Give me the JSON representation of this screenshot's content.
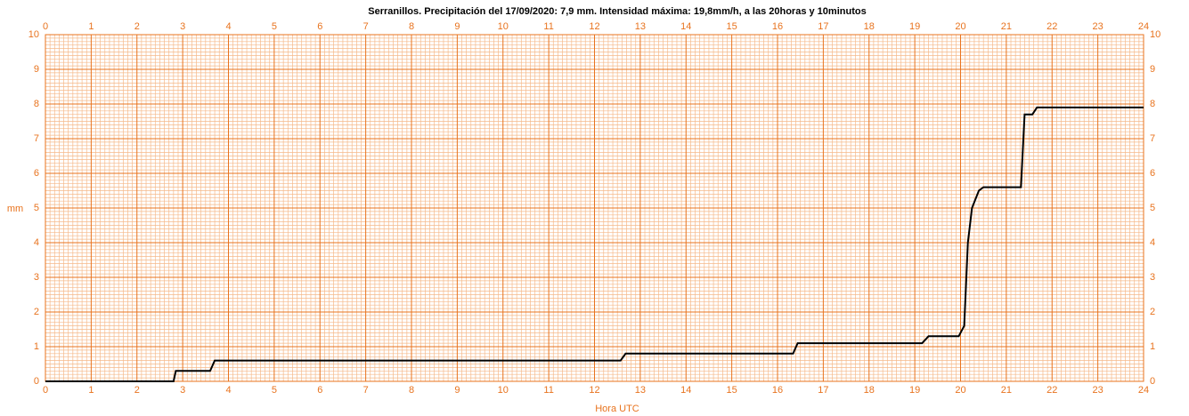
{
  "chart_data": {
    "type": "line",
    "title": "Serranillos. Precipitación del 17/09/2020: 7,9 mm. Intensidad máxima: 19,8mm/h, a las 20horas y 10minutos",
    "x_label": "Hora UTC",
    "y_label": "mm",
    "x": [
      0,
      2.8,
      2.85,
      3.6,
      3.7,
      12.57,
      12.68,
      16.34,
      16.44,
      19.16,
      19.3,
      19.96,
      20.08,
      20.16,
      20.25,
      20.4,
      20.5,
      21.32,
      21.4,
      21.57,
      21.67,
      24
    ],
    "series": [
      {
        "color": "#000000",
        "values": [
          0,
          0,
          0.3,
          0.3,
          0.6,
          0.6,
          0.8,
          0.8,
          1.1,
          1.1,
          1.3,
          1.3,
          1.6,
          4.0,
          5.0,
          5.5,
          5.6,
          5.6,
          7.7,
          7.7,
          7.9,
          7.9
        ]
      }
    ],
    "xlim": [
      0,
      24
    ],
    "ylim": [
      0,
      10
    ],
    "xticks": [
      0,
      1,
      2,
      3,
      4,
      5,
      6,
      7,
      8,
      9,
      10,
      11,
      12,
      13,
      14,
      15,
      16,
      17,
      18,
      19,
      20,
      21,
      22,
      23,
      24
    ],
    "yticks": [
      0,
      1,
      2,
      3,
      4,
      5,
      6,
      7,
      8,
      9,
      10
    ],
    "grid": true,
    "minor_grid": true,
    "axis_color": "#e8731e"
  }
}
